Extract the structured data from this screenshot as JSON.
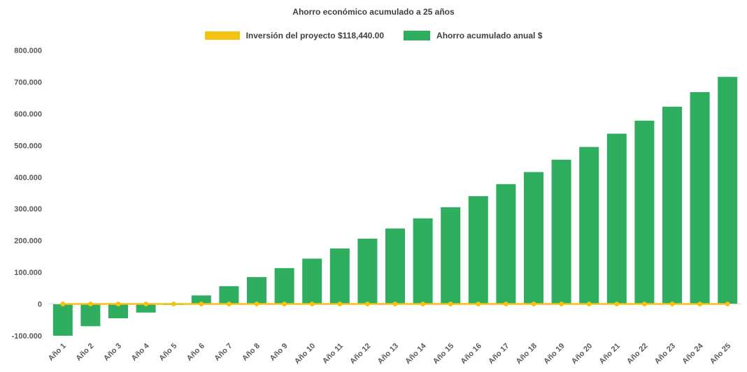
{
  "chart_data": {
    "type": "bar",
    "title": "Ahorro económico acumulado a 25 años",
    "categories": [
      "Año 1",
      "Año 2",
      "Año 3",
      "Año 4",
      "Año 5",
      "Año 6",
      "Año 7",
      "Año 8",
      "Año 9",
      "Año 10",
      "Año 11",
      "Año 12",
      "Año 13",
      "Año 14",
      "Año 15",
      "Año 16",
      "Año 17",
      "Año 18",
      "Año 19",
      "Año 20",
      "Año 21",
      "Año 22",
      "Año 23",
      "Año 24",
      "Año 25"
    ],
    "series": [
      {
        "name": "Inversión del proyecto $118,440.00",
        "type": "line",
        "color": "#F2C311",
        "values": [
          0,
          0,
          0,
          0,
          0,
          0,
          0,
          0,
          0,
          0,
          0,
          0,
          0,
          0,
          0,
          0,
          0,
          0,
          0,
          0,
          0,
          0,
          0,
          0,
          0
        ]
      },
      {
        "name": "Ahorro acumulado anual $",
        "type": "bar",
        "color": "#2FAE5F",
        "values": [
          -100000,
          -70000,
          -45000,
          -27000,
          -3000,
          27000,
          56000,
          85000,
          113000,
          143000,
          175000,
          206000,
          238000,
          270000,
          305000,
          340000,
          378000,
          416000,
          455000,
          495000,
          537000,
          578000,
          622000,
          668000,
          716000
        ]
      }
    ],
    "ylim": [
      -100000,
      800000
    ],
    "ytick_interval": 100000,
    "yticks": [
      {
        "value": 800000,
        "label": "800.000"
      },
      {
        "value": 700000,
        "label": "700.000"
      },
      {
        "value": 600000,
        "label": "600.000"
      },
      {
        "value": 500000,
        "label": "500.000"
      },
      {
        "value": 400000,
        "label": "400.000"
      },
      {
        "value": 300000,
        "label": "300.000"
      },
      {
        "value": 200000,
        "label": "200.000"
      },
      {
        "value": 100000,
        "label": "100.000"
      },
      {
        "value": 0,
        "label": "0"
      },
      {
        "value": -100000,
        "label": "-100.000"
      }
    ],
    "grid": false,
    "legend_position": "top",
    "x_label_rotation": -45,
    "axis_line_color": "#d9d9d9"
  }
}
